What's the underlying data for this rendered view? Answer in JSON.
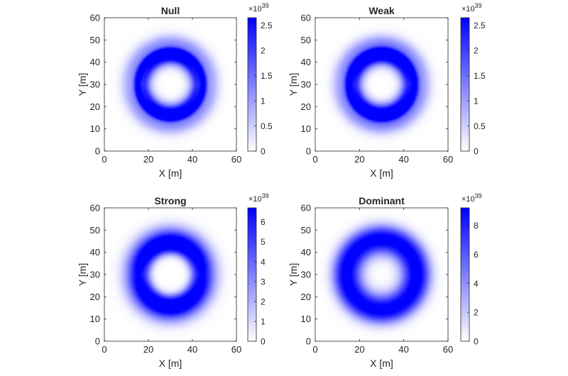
{
  "chart_data": [
    {
      "type": "heatmap",
      "title": "Null",
      "xlabel": "X [m]",
      "ylabel": "Y [m]",
      "xlim": [
        0,
        60
      ],
      "ylim": [
        0,
        60
      ],
      "xticks": [
        "0",
        "20",
        "40",
        "60"
      ],
      "yticks": [
        "0",
        "10",
        "20",
        "30",
        "40",
        "50",
        "60"
      ],
      "colorbar": {
        "exponent": "×10",
        "exponent_power": "39",
        "min": 0,
        "max": 2.65,
        "ticks": [
          "0",
          "0.5",
          "1",
          "1.5",
          "2",
          "2.5"
        ],
        "tick_values": [
          0,
          0.5,
          1,
          1.5,
          2,
          2.5
        ],
        "color_low": "#ffffff",
        "color_high": "#0000ff"
      },
      "field": {
        "center": [
          30,
          30
        ],
        "rings": [
          {
            "radius": 15,
            "width": 1.2,
            "peak": 2.65
          },
          {
            "radius": 12,
            "width": 1.6,
            "peak": 1.9
          },
          {
            "radius": 18,
            "width": 3.0,
            "peak": 1.2
          },
          {
            "radius": 10,
            "width": 2.2,
            "peak": 0.9
          }
        ],
        "asymmetry": "vertical"
      }
    },
    {
      "type": "heatmap",
      "title": "Weak",
      "xlabel": "X [m]",
      "ylabel": "Y [m]",
      "xlim": [
        0,
        60
      ],
      "ylim": [
        0,
        60
      ],
      "xticks": [
        "0",
        "20",
        "40",
        "60"
      ],
      "yticks": [
        "0",
        "10",
        "20",
        "30",
        "40",
        "50",
        "60"
      ],
      "colorbar": {
        "exponent": "×10",
        "exponent_power": "39",
        "min": 0,
        "max": 2.65,
        "ticks": [
          "0",
          "0.5",
          "1",
          "1.5",
          "2",
          "2.5"
        ],
        "tick_values": [
          0,
          0.5,
          1,
          1.5,
          2,
          2.5
        ],
        "color_low": "#ffffff",
        "color_high": "#0000ff"
      },
      "field": {
        "center": [
          30,
          30
        ],
        "rings": [
          {
            "radius": 15,
            "width": 1.3,
            "peak": 2.6
          },
          {
            "radius": 12,
            "width": 1.6,
            "peak": 1.9
          },
          {
            "radius": 18,
            "width": 3.0,
            "peak": 1.3
          },
          {
            "radius": 10,
            "width": 2.2,
            "peak": 1.0
          }
        ],
        "asymmetry": "vertical"
      }
    },
    {
      "type": "heatmap",
      "title": "Strong",
      "xlabel": "X [m]",
      "ylabel": "Y [m]",
      "xlim": [
        0,
        60
      ],
      "ylim": [
        0,
        60
      ],
      "xticks": [
        "0",
        "20",
        "40",
        "60"
      ],
      "yticks": [
        "0",
        "10",
        "20",
        "30",
        "40",
        "50",
        "60"
      ],
      "colorbar": {
        "exponent": "×10",
        "exponent_power": "39",
        "min": 0,
        "max": 6.7,
        "ticks": [
          "0",
          "1",
          "2",
          "3",
          "4",
          "5",
          "6"
        ],
        "tick_values": [
          0,
          1,
          2,
          3,
          4,
          5,
          6
        ],
        "color_low": "#ffffff",
        "color_high": "#0000ff"
      },
      "field": {
        "center": [
          30,
          30
        ],
        "rings": [
          {
            "radius": 14.5,
            "width": 2.6,
            "peak": 5.8
          },
          {
            "radius": 11,
            "width": 2.0,
            "peak": 3.2
          },
          {
            "radius": 18,
            "width": 3.4,
            "peak": 3.4
          }
        ],
        "asymmetry": "vertical"
      }
    },
    {
      "type": "heatmap",
      "title": "Dominant",
      "xlabel": "X [m]",
      "ylabel": "Y [m]",
      "xlim": [
        0,
        60
      ],
      "ylim": [
        0,
        60
      ],
      "xticks": [
        "0",
        "20",
        "40",
        "60"
      ],
      "yticks": [
        "0",
        "10",
        "20",
        "30",
        "40",
        "50",
        "60"
      ],
      "colorbar": {
        "exponent": "×10",
        "exponent_power": "39",
        "min": 0,
        "max": 9.2,
        "ticks": [
          "0",
          "2",
          "4",
          "6",
          "8"
        ],
        "tick_values": [
          0,
          2,
          4,
          6,
          8
        ],
        "color_low": "#ffffff",
        "color_high": "#0000ff"
      },
      "field": {
        "center": [
          30,
          30
        ],
        "rings": [
          {
            "radius": 14.5,
            "width": 4.2,
            "peak": 8.6
          },
          {
            "radius": 19,
            "width": 3.0,
            "peak": 3.0
          }
        ],
        "asymmetry": "none"
      }
    }
  ]
}
